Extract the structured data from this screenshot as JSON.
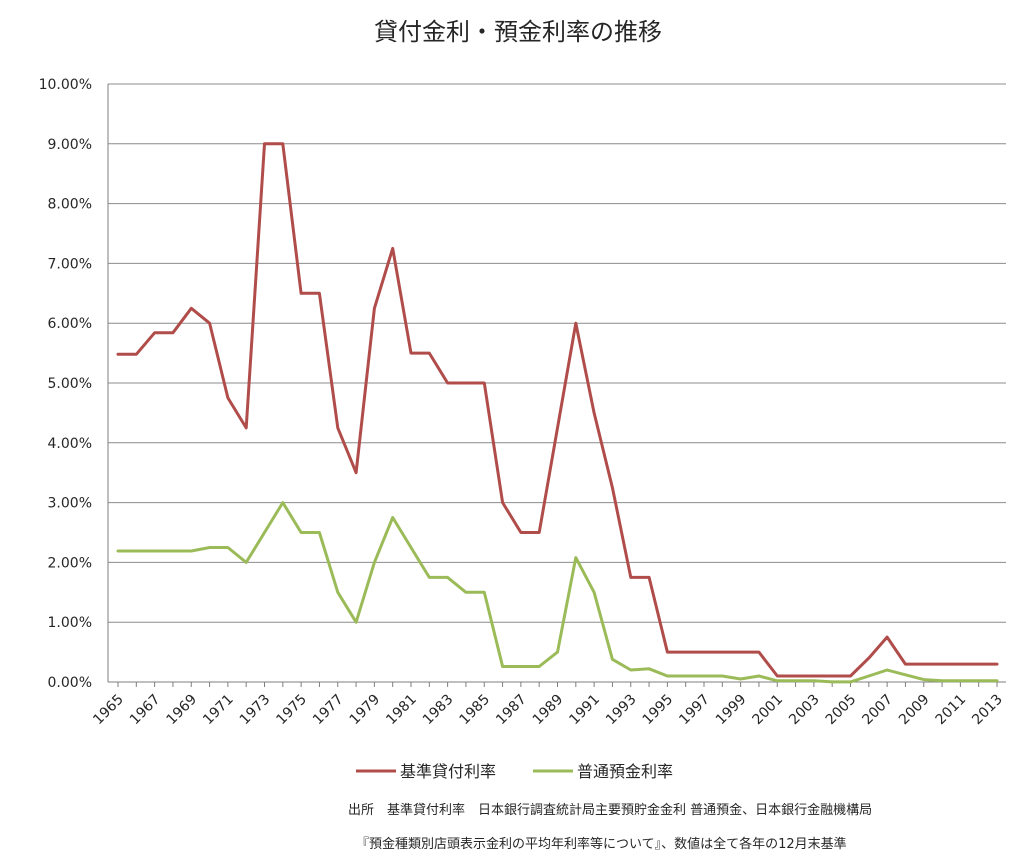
{
  "chart_data": {
    "type": "line",
    "title": "貸付金利・預金利率の推移",
    "xlabel": "",
    "ylabel": "",
    "ylim": [
      0,
      10
    ],
    "y_ticks": [
      "0.00%",
      "1.00%",
      "2.00%",
      "3.00%",
      "4.00%",
      "5.00%",
      "6.00%",
      "7.00%",
      "8.00%",
      "9.00%",
      "10.00%"
    ],
    "x_tick_labels": [
      "1965",
      "1967",
      "1969",
      "1971",
      "1973",
      "1975",
      "1977",
      "1979",
      "1981",
      "1983",
      "1985",
      "1987",
      "1989",
      "1991",
      "1993",
      "1995",
      "1997",
      "1999",
      "2001",
      "2003",
      "2005",
      "2007",
      "2009",
      "2011",
      "2013"
    ],
    "x": [
      1965,
      1966,
      1967,
      1968,
      1969,
      1970,
      1971,
      1972,
      1973,
      1974,
      1975,
      1976,
      1977,
      1978,
      1979,
      1980,
      1981,
      1982,
      1983,
      1984,
      1985,
      1986,
      1987,
      1988,
      1989,
      1990,
      1991,
      1992,
      1993,
      1994,
      1995,
      1996,
      1997,
      1998,
      1999,
      2000,
      2001,
      2002,
      2003,
      2004,
      2005,
      2006,
      2007,
      2008,
      2009,
      2010,
      2011,
      2012,
      2013
    ],
    "grid": true,
    "legend_position": "bottom",
    "series": [
      {
        "name": "基準貸付利率",
        "color": "#b04d4b",
        "values": [
          5.48,
          5.48,
          5.84,
          5.84,
          6.25,
          6.0,
          4.75,
          4.25,
          9.0,
          9.0,
          6.5,
          6.5,
          4.25,
          3.5,
          6.25,
          7.25,
          5.5,
          5.5,
          5.0,
          5.0,
          5.0,
          3.0,
          2.5,
          2.5,
          4.25,
          6.0,
          4.5,
          3.25,
          1.75,
          1.75,
          0.5,
          0.5,
          0.5,
          0.5,
          0.5,
          0.5,
          0.1,
          0.1,
          0.1,
          0.1,
          0.1,
          0.4,
          0.75,
          0.3,
          0.3,
          0.3,
          0.3,
          0.3,
          0.3
        ]
      },
      {
        "name": "普通預金利率",
        "color": "#9bbb59",
        "values": [
          2.19,
          2.19,
          2.19,
          2.19,
          2.19,
          2.25,
          2.25,
          2.0,
          2.5,
          3.0,
          2.5,
          2.5,
          1.5,
          1.0,
          2.0,
          2.75,
          2.25,
          1.75,
          1.75,
          1.5,
          1.5,
          0.26,
          0.26,
          0.26,
          0.5,
          2.08,
          1.5,
          0.38,
          0.2,
          0.22,
          0.1,
          0.1,
          0.1,
          0.1,
          0.05,
          0.1,
          0.02,
          0.02,
          0.02,
          0.001,
          0.001,
          0.1,
          0.2,
          0.12,
          0.04,
          0.02,
          0.02,
          0.02,
          0.02
        ]
      }
    ],
    "source_lines": [
      "出所　基準貸付利率　日本銀行調査統計局主要預貯金金利 普通預金、日本銀行金融機構局",
      "『預金種類別店頭表示金利の平均年利率等について』、数値は全て各年の12月末基準"
    ]
  }
}
